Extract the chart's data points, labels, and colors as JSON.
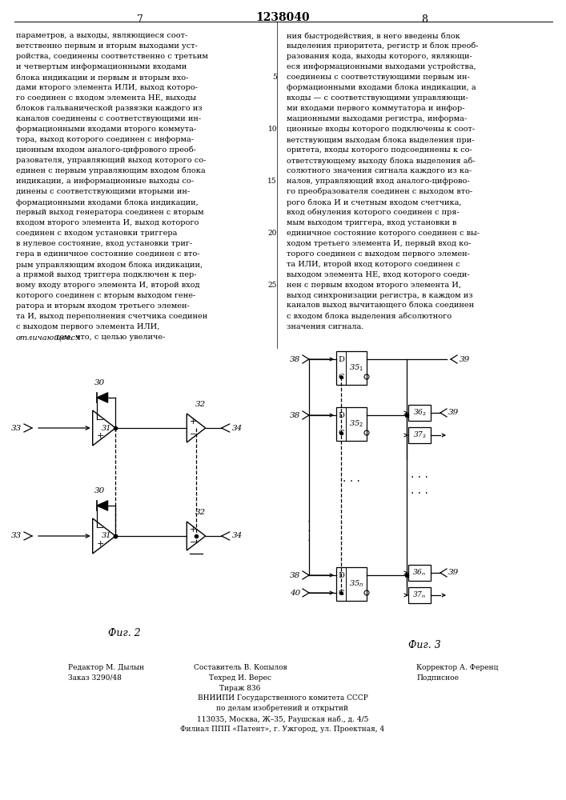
{
  "page_number_left": "7",
  "page_number_center": "1238040",
  "page_number_right": "8",
  "background_color": "#ffffff",
  "text_color": "#000000",
  "left_column_text": [
    "параметров, а выходы, являющиеся соот-",
    "ветственно первым и вторым выходами уст-",
    "ройства, соединены соответственно с третьим",
    "и четвертым информационными входами",
    "блока индикации и первым и вторым вхо-",
    "дами второго элемента ИЛИ, выход которо-",
    "го соединен с входом элемента НЕ, выходы",
    "блоков гальванической развязки каждого из",
    "каналов соединены с соответствующими ин-",
    "формационными входами второго коммута-",
    "тора, выход которого соединен с информа-",
    "ционным входом аналого-цифрового преоб-",
    "разователя, управляющий выход которого со-",
    "единен с первым управляющим входом блока",
    "индикации, а информационные выходы со-",
    "динены с соответствующими вторыми ин-",
    "формационными входами блока индикации,",
    "первый выход генератора соединен с вторым",
    "входом второго элемента И, выход которого",
    "соединен с входом установки триггера",
    "в нулевое состояние, вход установки триг-",
    "гера в единичное состояние соединен с вто-",
    "рым управляющим входом блока индикации,",
    "а прямой выход триггера подключен к пер-",
    "вому входу второго элемента И, второй вход",
    "которого соединен с вторым выходом гене-",
    "ратора и вторым входом третьего элемен-",
    "та И, выход переполнения счетчика соединен",
    "с выходом первого элемента ИЛИ,",
    "отличающееся тем, что, с целью увеличе-"
  ],
  "right_column_text": [
    "ния быстродействия, в него введены блок",
    "выделения приоритета, регистр и блок преоб-",
    "разования кода, выходы которого, являющи-",
    "еся информационными выходами устройства,",
    "соединены с соответствующими первым ин-",
    "формационными входами блока индикации, а",
    "входы — с соответствующими управляющи-",
    "ми входами первого коммутатора и инфор-",
    "мационными выходами регистра, информа-",
    "ционные входы которого подключены к соот-",
    "ветствующим выходам блока выделения при-",
    "оритета, входы которого подсоединены к со-",
    "ответствующему выходу блока выделения аб-",
    "солютного значения сигнала каждого из ка-",
    "налов, управляющий вход аналого-цифрово-",
    "го преобразователя соединен с выходом вто-",
    "рого блока И и счетным входом счетчика,",
    "вход обнуления которого соединен с пря-",
    "мым выходом триггера, вход установки в",
    "единичное состояние которого соединен с вы-",
    "ходом третьего элемента И, первый вход ко-",
    "торого соединен с выходом первого элемен-",
    "та ИЛИ, второй вход которого соединен с",
    "выходом элемента НЕ, вход которого соеди-",
    "нен с первым входом второго элемента И,",
    "выход синхронизации регистра, в каждом из",
    "каналов выход вычитающего блока соединен",
    "с входом блока выделения абсолютного",
    "значения сигнала."
  ],
  "fig2_label": "Фиг. 2",
  "fig3_label": "Фиг. 3",
  "footer_left": [
    "Редактор М. Дылын",
    "Заказ 3290/48"
  ],
  "footer_center": [
    "Составитель В. Копылов",
    "Техред И. Верес",
    "Тираж 836"
  ],
  "footer_right": [
    "Корректор А. Ференц",
    "Подписное"
  ],
  "footer_vniipi": [
    "ВНИИПИ Государственного комитета СССР",
    "по делам изобретений и открытий",
    "113035, Москва, Ж–35, Раушская наб., д. 4/5",
    "Филиал ППП «Патент», г. Ужгород, ул. Проектная, 4"
  ]
}
